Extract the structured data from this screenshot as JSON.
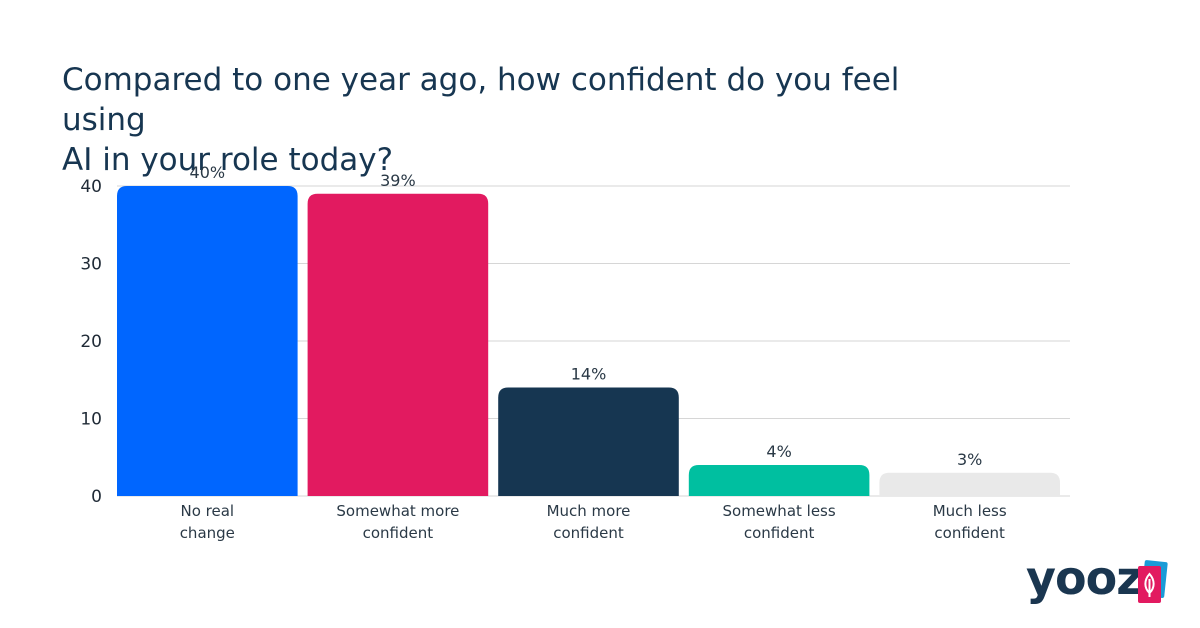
{
  "chart_data": {
    "type": "bar",
    "title_lines": [
      "Compared to one year ago, how confident do you feel using",
      "AI in your role today?"
    ],
    "categories": [
      [
        "No real",
        "change"
      ],
      [
        "Somewhat more",
        "confident"
      ],
      [
        "Much more",
        "confident"
      ],
      [
        "Somewhat less",
        "confident"
      ],
      [
        "Much less",
        "confident"
      ]
    ],
    "values": [
      40,
      39,
      14,
      4,
      3
    ],
    "value_labels": [
      "40%",
      "39%",
      "14%",
      "4%",
      "3%"
    ],
    "colors": [
      "#0066ff",
      "#e21a60",
      "#163651",
      "#00bfa0",
      "#e9e9e9"
    ],
    "ylim": [
      0,
      40
    ],
    "yticks": [
      0,
      10,
      20,
      30,
      40
    ],
    "grid": true,
    "xlabel": "",
    "ylabel": ""
  },
  "brand": {
    "name": "yooz",
    "colors": [
      "#1a3650",
      "#e21a60",
      "#1a9bd7"
    ]
  }
}
